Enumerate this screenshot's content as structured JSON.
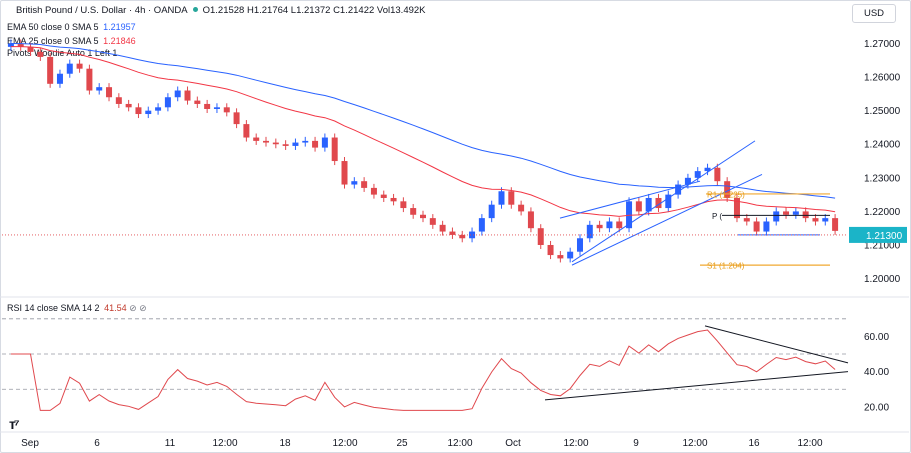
{
  "header": {
    "title": "British Pound / U.S. Dollar · 4h · OANDA",
    "ohlc": "O1.21528 H1.21764 L1.21372 C1.21422 Vol13.492K",
    "currency": "USD"
  },
  "indicators": [
    {
      "label": "EMA 50 close 0 SMA 5",
      "value": "1.21957",
      "color": "#2962ff"
    },
    {
      "label": "EMA 25 close 0 SMA 5",
      "value": "1.21846",
      "color": "#f23645"
    },
    {
      "label": "Pivots Woodie Auto 1 Left 1",
      "value": "",
      "color": "#131722"
    }
  ],
  "rsi_label": "RSI 14 close SMA 14 2",
  "rsi_value": "41.54",
  "price_axis": {
    "ticks": [
      "1.27000",
      "1.26000",
      "1.25000",
      "1.24000",
      "1.23000",
      "1.22000",
      "1.21000",
      "1.20000"
    ],
    "current_price": "1.21300",
    "current_color": "#1bb4c8"
  },
  "rsi_axis": {
    "ticks": [
      "60.00",
      "40.00",
      "20.00"
    ]
  },
  "time_axis": {
    "ticks": [
      "Sep",
      "6",
      "11",
      "12:00",
      "18",
      "12:00",
      "25",
      "12:00",
      "Oct",
      "12:00",
      "9",
      "12:00",
      "16",
      "12:00"
    ]
  },
  "pivot_labels": {
    "p": "P (",
    "r": "R1 (1.225)",
    "s": "S1 (1.204)"
  },
  "chart_data": {
    "type": "candlestick",
    "title": "British Pound / U.S. Dollar · 4h · OANDA",
    "ylim": [
      1.196,
      1.277
    ],
    "close": [
      1.27,
      1.269,
      1.2675,
      1.266,
      1.258,
      1.261,
      1.264,
      1.2625,
      1.256,
      1.257,
      1.254,
      1.252,
      1.251,
      1.249,
      1.25,
      1.251,
      1.254,
      1.256,
      1.253,
      1.252,
      1.2505,
      1.251,
      1.2495,
      1.246,
      1.242,
      1.241,
      1.2405,
      1.24,
      1.2395,
      1.2405,
      1.241,
      1.239,
      1.242,
      1.235,
      1.228,
      1.229,
      1.227,
      1.225,
      1.224,
      1.223,
      1.221,
      1.219,
      1.218,
      1.216,
      1.214,
      1.213,
      1.212,
      1.214,
      1.218,
      1.222,
      1.226,
      1.222,
      1.22,
      1.215,
      1.21,
      1.207,
      1.206,
      1.208,
      1.212,
      1.216,
      1.215,
      1.217,
      1.215,
      1.223,
      1.22,
      1.224,
      1.221,
      1.225,
      1.228,
      1.23,
      1.232,
      1.233,
      1.229,
      1.224,
      1.218,
      1.217,
      1.214,
      1.217,
      1.22,
      1.219,
      1.22,
      1.218,
      1.217,
      1.218,
      1.2142
    ]
  }
}
